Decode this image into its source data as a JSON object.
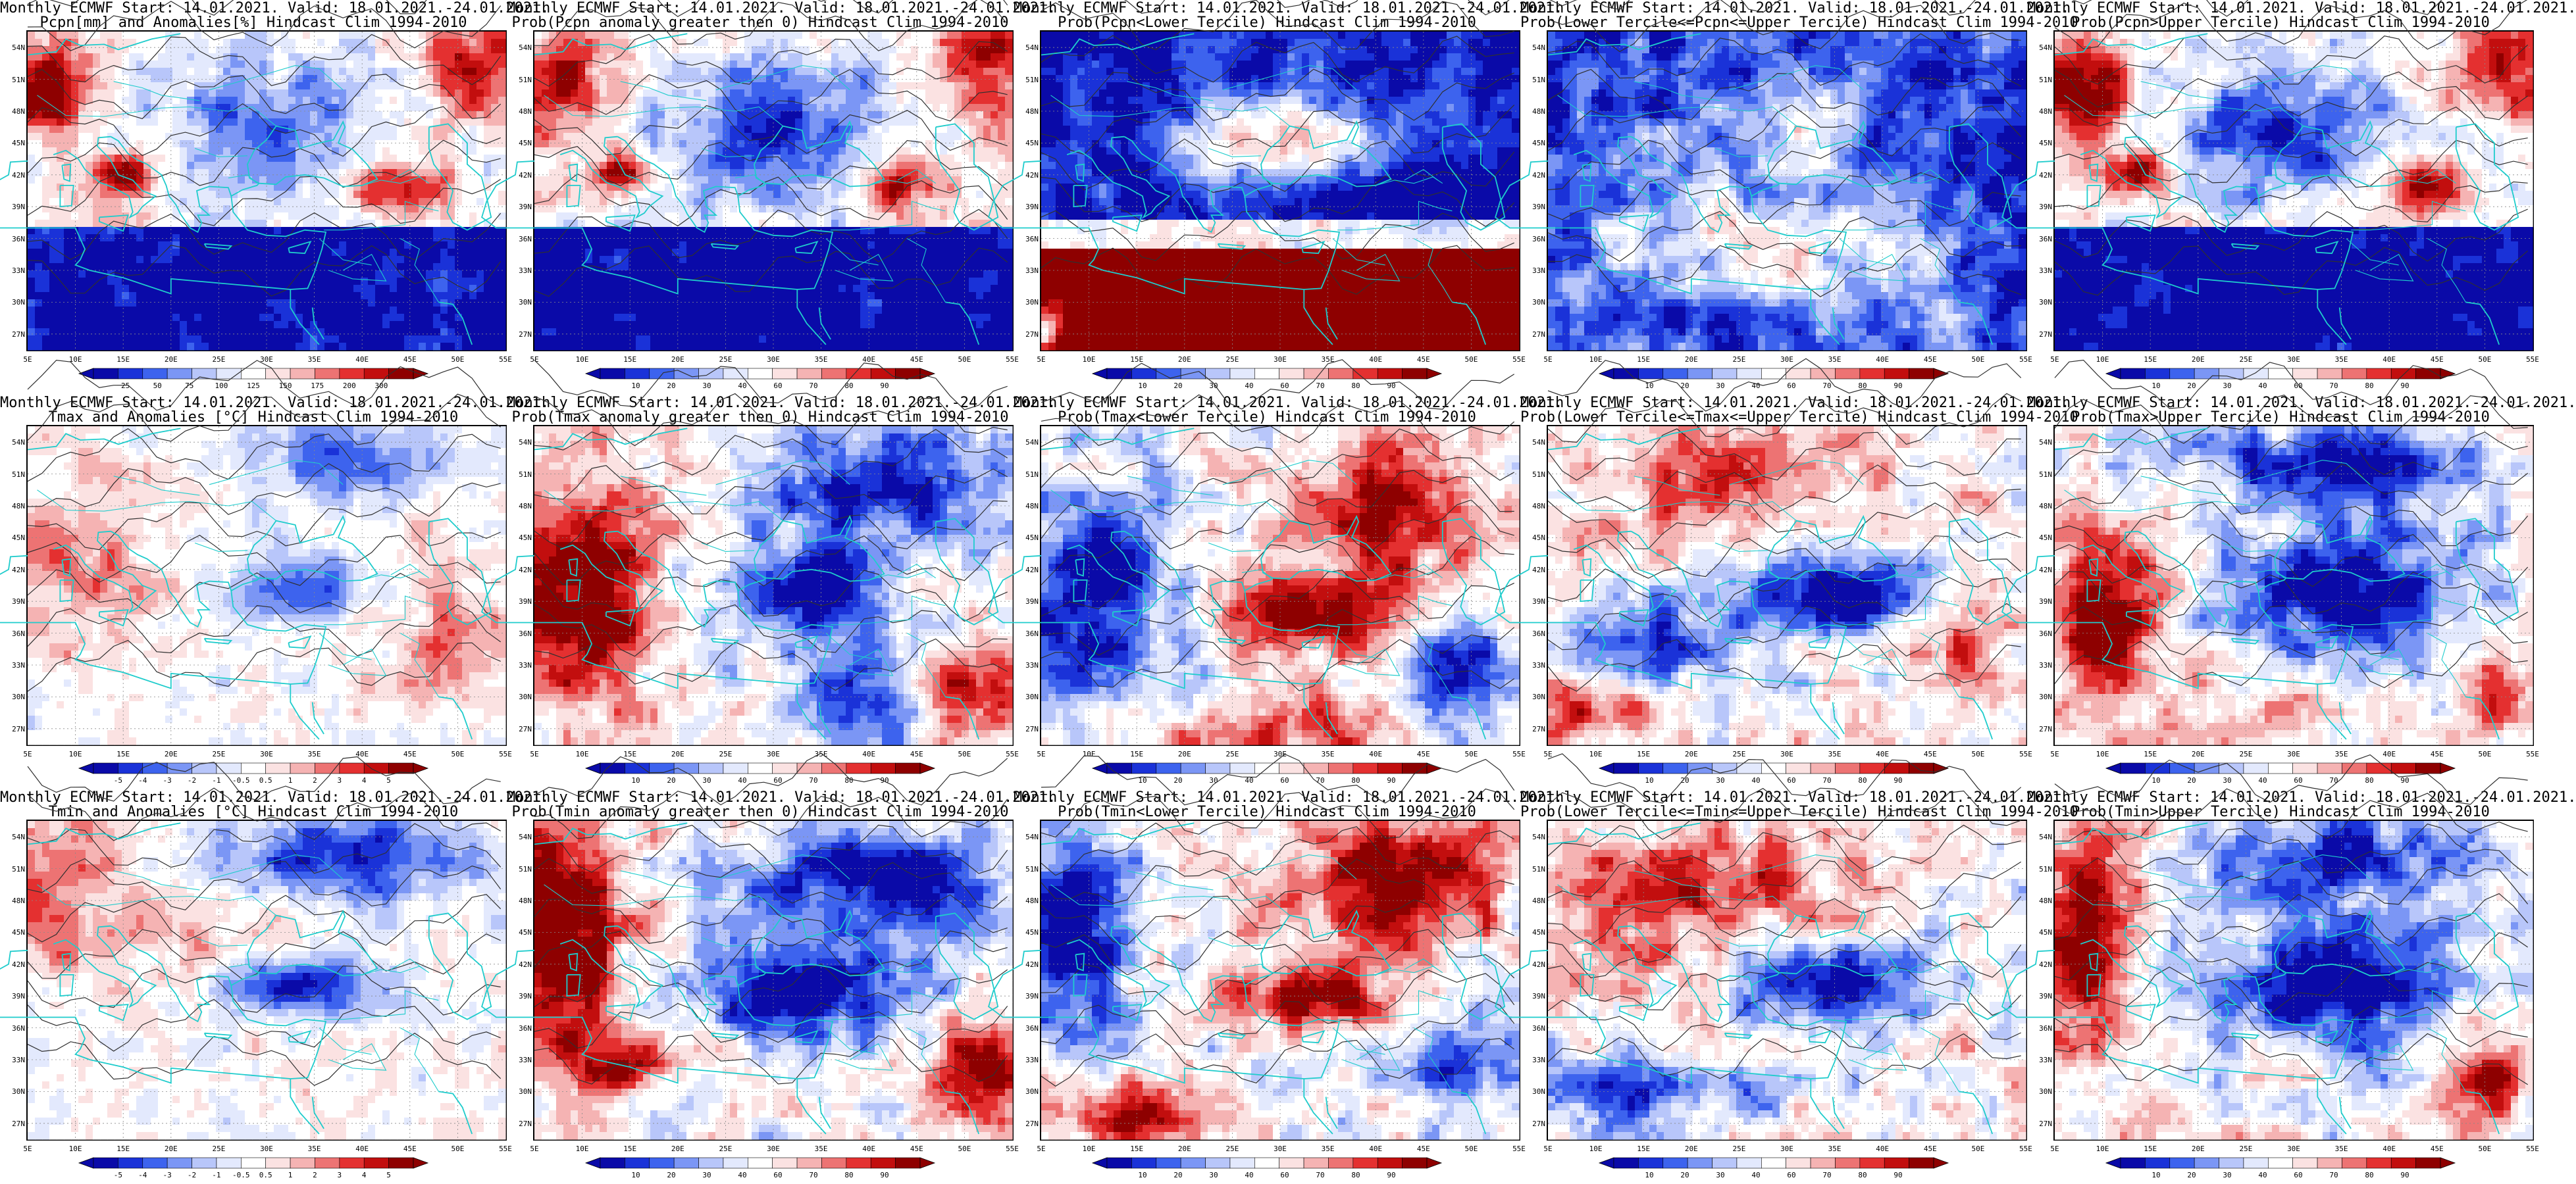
{
  "palette": {
    "blues": [
      "#0a0aa8",
      "#1a32d8",
      "#3d63ee",
      "#7b96f5",
      "#b8c6fa",
      "#e3e9fd"
    ],
    "reds": [
      "#fbe2e2",
      "#f5b3b3",
      "#ed7373",
      "#e43030",
      "#c20e0e",
      "#8e0000"
    ],
    "white": "#ffffff",
    "coast": "#1fcccc",
    "contour": "#303030"
  },
  "lat_labels": [
    "54N",
    "51N",
    "48N",
    "45N",
    "42N",
    "39N",
    "36N",
    "33N",
    "30N",
    "27N"
  ],
  "lon_labels": [
    "5E",
    "10E",
    "15E",
    "20E",
    "25E",
    "30E",
    "35E",
    "40E",
    "45E",
    "50E",
    "55E"
  ],
  "panels": [
    {
      "row": 0,
      "col": 0,
      "title1": "Monthly ECMWF Start: 14.01.2021. Valid: 18.01.2021.-24.01.2021.",
      "title2": "Pcpn[mm] and Anomalies[%] Hindcast Clim 1994-2010",
      "legend": [
        "25",
        "50",
        "75",
        "100",
        "125",
        "150",
        "175",
        "200",
        "300"
      ],
      "pattern": "pcp_anom"
    },
    {
      "row": 0,
      "col": 1,
      "title1": "Monthly ECMWF Start: 14.01.2021. Valid: 18.01.2021.-24.01.2021.",
      "title2": "Prob(Pcpn anomaly greater then 0) Hindcast Clim 1994-2010",
      "legend": [
        "10",
        "20",
        "30",
        "40",
        "60",
        "70",
        "80",
        "90"
      ],
      "pattern": "pcp_pos"
    },
    {
      "row": 0,
      "col": 2,
      "title1": "Monthly ECMWF Start: 14.01.2021. Valid: 18.01.2021.-24.01.2021.",
      "title2": "Prob(Pcpn<Lower Tercile) Hindcast Clim 1994-2010",
      "legend": [
        "10",
        "20",
        "30",
        "40",
        "60",
        "70",
        "80",
        "90"
      ],
      "pattern": "pcp_low"
    },
    {
      "row": 0,
      "col": 3,
      "title1": "Monthly ECMWF Start: 14.01.2021. Valid: 18.01.2021.-24.01.2021.",
      "title2": "Prob(Lower Tercile<=Pcpn<=Upper Tercile) Hindcast Clim 1994-2010",
      "legend": [
        "10",
        "20",
        "30",
        "40",
        "60",
        "70",
        "80",
        "90"
      ],
      "pattern": "pcp_mid"
    },
    {
      "row": 0,
      "col": 4,
      "title1": "Monthly ECMWF Start: 14.01.2021. Valid: 18.01.2021.-24.01.2021.",
      "title2": "Prob(Pcpn>Upper Tercile) Hindcast Clim 1994-2010",
      "legend": [
        "10",
        "20",
        "30",
        "40",
        "60",
        "70",
        "80",
        "90"
      ],
      "pattern": "pcp_up"
    },
    {
      "row": 1,
      "col": 0,
      "title1": "Monthly ECMWF Start: 14.01.2021. Valid: 18.01.2021.-24.01.2021.",
      "title2": "Tmax and Anomalies [°C] Hindcast Clim 1994-2010",
      "legend": [
        "-5",
        "-4",
        "-3",
        "-2",
        "-1",
        "-0.5",
        "0.5",
        "1",
        "2",
        "3",
        "4",
        "5"
      ],
      "pattern": "tmax_anom"
    },
    {
      "row": 1,
      "col": 1,
      "title1": "Monthly ECMWF Start: 14.01.2021. Valid: 18.01.2021.-24.01.2021.",
      "title2": "Prob(Tmax anomaly greater then 0) Hindcast Clim 1994-2010",
      "legend": [
        "10",
        "20",
        "30",
        "40",
        "60",
        "70",
        "80",
        "90"
      ],
      "pattern": "tmax_pos"
    },
    {
      "row": 1,
      "col": 2,
      "title1": "Monthly ECMWF Start: 14.01.2021. Valid: 18.01.2021.-24.01.2021.",
      "title2": "Prob(Tmax<Lower Tercile) Hindcast Clim 1994-2010",
      "legend": [
        "10",
        "20",
        "30",
        "40",
        "60",
        "70",
        "80",
        "90"
      ],
      "pattern": "tmax_low"
    },
    {
      "row": 1,
      "col": 3,
      "title1": "Monthly ECMWF Start: 14.01.2021. Valid: 18.01.2021.-24.01.2021.",
      "title2": "Prob(Lower Tercile<=Tmax<=Upper Tercile) Hindcast Clim 1994-2010",
      "legend": [
        "10",
        "20",
        "30",
        "40",
        "60",
        "70",
        "80",
        "90"
      ],
      "pattern": "tmax_mid"
    },
    {
      "row": 1,
      "col": 4,
      "title1": "Monthly ECMWF Start: 14.01.2021. Valid: 18.01.2021.-24.01.2021.",
      "title2": "Prob(Tmax>Upper Tercile) Hindcast Clim 1994-2010",
      "legend": [
        "10",
        "20",
        "30",
        "40",
        "60",
        "70",
        "80",
        "90"
      ],
      "pattern": "tmax_up"
    },
    {
      "row": 2,
      "col": 0,
      "title1": "Monthly ECMWF Start: 14.01.2021. Valid: 18.01.2021.-24.01.2021.",
      "title2": "Tmin and Anomalies [°C] Hindcast Clim 1994-2010",
      "legend": [
        "-5",
        "-4",
        "-3",
        "-2",
        "-1",
        "-0.5",
        "0.5",
        "1",
        "2",
        "3",
        "4",
        "5"
      ],
      "pattern": "tmin_anom"
    },
    {
      "row": 2,
      "col": 1,
      "title1": "Monthly ECMWF Start: 14.01.2021. Valid: 18.01.2021.-24.01.2021.",
      "title2": "Prob(Tmin anomaly greater then 0) Hindcast Clim 1994-2010",
      "legend": [
        "10",
        "20",
        "30",
        "40",
        "60",
        "70",
        "80",
        "90"
      ],
      "pattern": "tmin_pos"
    },
    {
      "row": 2,
      "col": 2,
      "title1": "Monthly ECMWF Start: 14.01.2021. Valid: 18.01.2021.-24.01.2021.",
      "title2": "Prob(Tmin<Lower Tercile) Hindcast Clim 1994-2010",
      "legend": [
        "10",
        "20",
        "30",
        "40",
        "60",
        "70",
        "80",
        "90"
      ],
      "pattern": "tmin_low"
    },
    {
      "row": 2,
      "col": 3,
      "title1": "Monthly ECMWF Start: 14.01.2021. Valid: 18.01.2021.-24.01.2021.",
      "title2": "Prob(Lower Tercile<=Tmin<=Upper Tercile) Hindcast Clim 1994-2010",
      "legend": [
        "10",
        "20",
        "30",
        "40",
        "60",
        "70",
        "80",
        "90"
      ],
      "pattern": "tmin_mid"
    },
    {
      "row": 2,
      "col": 4,
      "title1": "Monthly ECMWF Start: 14.01.2021. Valid: 18.01.2021.-24.01.2021.",
      "title2": "Prob(Tmin>Upper Tercile) Hindcast Clim 1994-2010",
      "legend": [
        "10",
        "20",
        "30",
        "40",
        "60",
        "70",
        "80",
        "90"
      ],
      "pattern": "tmin_up"
    }
  ]
}
